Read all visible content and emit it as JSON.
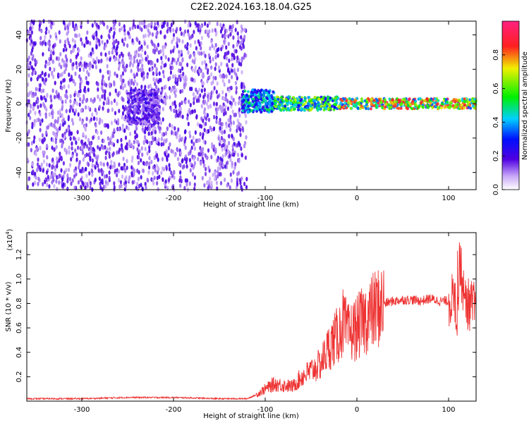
{
  "title": "C2E2.2024.163.18.04.G25",
  "colors": {
    "signal_color": "#ee3333",
    "background_scatter": "#7a1ee6",
    "axis": "#000000"
  },
  "chart_data": [
    {
      "type": "heatmap",
      "xlabel": "Height of straight line (km)",
      "ylabel": "Frequency (Hz)",
      "xlim": [
        -360,
        130
      ],
      "ylim": [
        -50,
        48
      ],
      "xticks": [
        -300,
        -200,
        -100,
        0,
        100
      ],
      "yticks": [
        -40,
        -20,
        0,
        20,
        40
      ],
      "colorbar": {
        "label": "Normalized spectral amplitude",
        "range": [
          0.0,
          1.0
        ],
        "ticks": [
          0.0,
          0.2,
          0.4,
          0.6,
          0.8
        ],
        "colormap": "rainbow-from-white"
      },
      "regions": [
        {
          "x_range": [
            -360,
            -120
          ],
          "y_range": [
            -50,
            48
          ],
          "amplitude": 0.15
        },
        {
          "x_range": [
            -250,
            -215
          ],
          "y_range": [
            -12,
            8
          ],
          "amplitude": 0.2
        },
        {
          "x_range": [
            -125,
            -90
          ],
          "y_range": [
            -5,
            8
          ],
          "amplitude": 0.45
        },
        {
          "x_range": [
            -90,
            -20
          ],
          "y_range": [
            -4,
            4
          ],
          "amplitude": 0.6
        },
        {
          "x_range": [
            -20,
            130
          ],
          "y_range": [
            -3,
            3
          ],
          "amplitude": 0.8
        }
      ]
    },
    {
      "type": "line",
      "xlabel": "Height of straight line (km)",
      "ylabel": "SNR (10 * v/v)",
      "yscale_label": "(x10",
      "yscale_exponent": "4",
      "yscale_suffix": ")",
      "xlim": [
        -360,
        130
      ],
      "ylim": [
        0,
        1.38
      ],
      "xticks": [
        -300,
        -200,
        -100,
        0,
        100
      ],
      "yticks": [
        0.2,
        0.4,
        0.6,
        0.8,
        1.0,
        1.2
      ],
      "series": [
        {
          "x": [
            -360,
            -300,
            -250,
            -200,
            -150,
            -120,
            -110,
            -100,
            -90,
            -80,
            -70,
            -60,
            -50,
            -40,
            -30,
            -20,
            -15,
            -10,
            0,
            10,
            20,
            30,
            40,
            50,
            60,
            70,
            80,
            90,
            100,
            105,
            110,
            112,
            115,
            120,
            130
          ],
          "y": [
            0.02,
            0.02,
            0.03,
            0.03,
            0.02,
            0.02,
            0.05,
            0.1,
            0.14,
            0.13,
            0.12,
            0.2,
            0.25,
            0.3,
            0.45,
            0.55,
            0.65,
            0.55,
            0.6,
            0.68,
            0.75,
            0.8,
            0.82,
            0.83,
            0.83,
            0.82,
            0.84,
            0.82,
            0.82,
            0.85,
            0.7,
            1.2,
            0.95,
            0.8,
            0.76
          ]
        }
      ]
    }
  ]
}
